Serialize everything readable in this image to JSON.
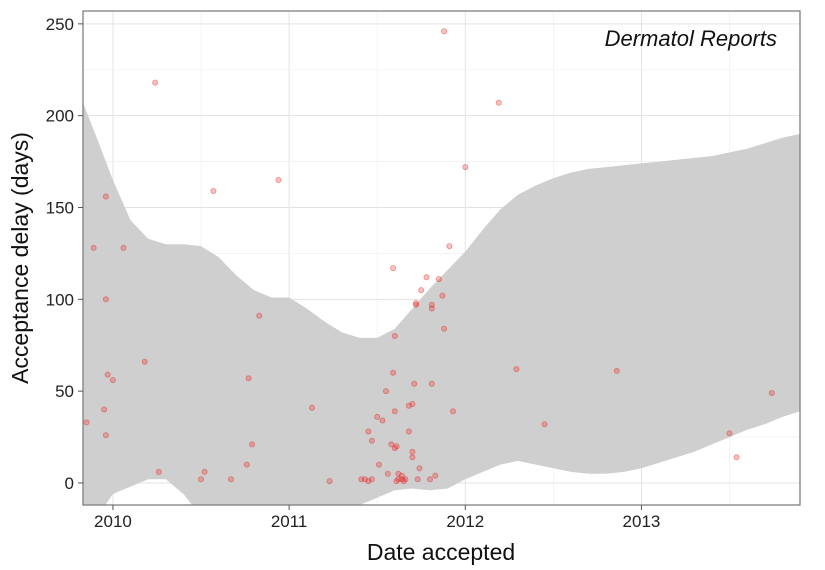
{
  "chart_data": {
    "type": "scatter",
    "title": "",
    "annotation": "Dermatol Reports",
    "xlabel": "Date accepted",
    "ylabel": "Acceptance delay (days)",
    "xlim": [
      2009.83,
      2013.9
    ],
    "ylim": [
      -12,
      257
    ],
    "x_ticks": [
      2010,
      2011,
      2012,
      2013
    ],
    "x_tick_labels": [
      "2010",
      "2011",
      "2012",
      "2013"
    ],
    "y_ticks": [
      0,
      50,
      100,
      150,
      200,
      250
    ],
    "y_tick_labels": [
      "0",
      "50",
      "100",
      "150",
      "200",
      "250"
    ],
    "grid": true,
    "point_color": "#e8221e",
    "band_color": "#cccccc",
    "points": [
      {
        "x": 2009.85,
        "y": 33
      },
      {
        "x": 2009.89,
        "y": 128
      },
      {
        "x": 2009.95,
        "y": 40
      },
      {
        "x": 2009.96,
        "y": 100
      },
      {
        "x": 2009.96,
        "y": 156
      },
      {
        "x": 2009.97,
        "y": 59
      },
      {
        "x": 2009.96,
        "y": 26
      },
      {
        "x": 2010.0,
        "y": 56
      },
      {
        "x": 2010.06,
        "y": 128
      },
      {
        "x": 2010.18,
        "y": 66
      },
      {
        "x": 2010.24,
        "y": 218
      },
      {
        "x": 2010.26,
        "y": 6
      },
      {
        "x": 2010.5,
        "y": 2
      },
      {
        "x": 2010.52,
        "y": 6
      },
      {
        "x": 2010.57,
        "y": 159
      },
      {
        "x": 2010.67,
        "y": 2
      },
      {
        "x": 2010.76,
        "y": 10
      },
      {
        "x": 2010.77,
        "y": 57
      },
      {
        "x": 2010.79,
        "y": 21
      },
      {
        "x": 2010.83,
        "y": 91
      },
      {
        "x": 2010.94,
        "y": 165
      },
      {
        "x": 2011.13,
        "y": 41
      },
      {
        "x": 2011.23,
        "y": 1
      },
      {
        "x": 2011.41,
        "y": 2
      },
      {
        "x": 2011.43,
        "y": 2
      },
      {
        "x": 2011.45,
        "y": 1
      },
      {
        "x": 2011.45,
        "y": 28
      },
      {
        "x": 2011.47,
        "y": 2
      },
      {
        "x": 2011.47,
        "y": 23
      },
      {
        "x": 2011.5,
        "y": 36
      },
      {
        "x": 2011.51,
        "y": 10
      },
      {
        "x": 2011.53,
        "y": 34
      },
      {
        "x": 2011.55,
        "y": 50
      },
      {
        "x": 2011.56,
        "y": 5
      },
      {
        "x": 2011.58,
        "y": 21
      },
      {
        "x": 2011.59,
        "y": 117
      },
      {
        "x": 2011.59,
        "y": 60
      },
      {
        "x": 2011.6,
        "y": 80
      },
      {
        "x": 2011.6,
        "y": 39
      },
      {
        "x": 2011.6,
        "y": 19
      },
      {
        "x": 2011.61,
        "y": 1
      },
      {
        "x": 2011.61,
        "y": 20
      },
      {
        "x": 2011.62,
        "y": 2
      },
      {
        "x": 2011.62,
        "y": 5
      },
      {
        "x": 2011.64,
        "y": 2
      },
      {
        "x": 2011.64,
        "y": 4
      },
      {
        "x": 2011.65,
        "y": 1
      },
      {
        "x": 2011.66,
        "y": 2
      },
      {
        "x": 2011.68,
        "y": 28
      },
      {
        "x": 2011.68,
        "y": 42
      },
      {
        "x": 2011.7,
        "y": 17
      },
      {
        "x": 2011.7,
        "y": 43
      },
      {
        "x": 2011.7,
        "y": 14
      },
      {
        "x": 2011.71,
        "y": 54
      },
      {
        "x": 2011.72,
        "y": 97
      },
      {
        "x": 2011.72,
        "y": 98
      },
      {
        "x": 2011.73,
        "y": 2
      },
      {
        "x": 2011.74,
        "y": 8
      },
      {
        "x": 2011.75,
        "y": 105
      },
      {
        "x": 2011.78,
        "y": 112
      },
      {
        "x": 2011.8,
        "y": 2
      },
      {
        "x": 2011.81,
        "y": 54
      },
      {
        "x": 2011.81,
        "y": 95
      },
      {
        "x": 2011.81,
        "y": 97
      },
      {
        "x": 2011.83,
        "y": 4
      },
      {
        "x": 2011.85,
        "y": 111
      },
      {
        "x": 2011.87,
        "y": 102
      },
      {
        "x": 2011.88,
        "y": 84
      },
      {
        "x": 2011.88,
        "y": 246
      },
      {
        "x": 2011.91,
        "y": 129
      },
      {
        "x": 2011.93,
        "y": 39
      },
      {
        "x": 2012.0,
        "y": 172
      },
      {
        "x": 2012.19,
        "y": 207
      },
      {
        "x": 2012.29,
        "y": 62
      },
      {
        "x": 2012.45,
        "y": 32
      },
      {
        "x": 2012.86,
        "y": 61
      },
      {
        "x": 2013.5,
        "y": 27
      },
      {
        "x": 2013.54,
        "y": 14
      },
      {
        "x": 2013.74,
        "y": 49
      }
    ],
    "band": {
      "x": [
        2009.83,
        2009.9,
        2010.0,
        2010.1,
        2010.2,
        2010.3,
        2010.4,
        2010.5,
        2010.6,
        2010.7,
        2010.8,
        2010.9,
        2011.0,
        2011.1,
        2011.2,
        2011.3,
        2011.4,
        2011.5,
        2011.6,
        2011.7,
        2011.8,
        2011.9,
        2012.0,
        2012.1,
        2012.2,
        2012.3,
        2012.4,
        2012.5,
        2012.6,
        2012.7,
        2012.8,
        2012.9,
        2013.0,
        2013.1,
        2013.2,
        2013.3,
        2013.4,
        2013.5,
        2013.6,
        2013.7,
        2013.8,
        2013.9
      ],
      "upper": [
        207,
        190,
        165,
        143,
        133,
        130,
        130,
        129,
        123,
        113,
        105,
        101,
        101,
        95,
        88,
        82,
        79,
        79,
        84,
        95,
        106,
        116,
        126,
        138,
        149,
        157,
        162,
        166,
        169,
        171,
        172,
        173,
        174,
        175,
        176,
        177,
        178,
        180,
        182,
        185,
        188,
        190
      ],
      "lower": [
        -45,
        -20,
        -6,
        -2,
        2,
        2,
        -6,
        -18,
        -40,
        -45,
        -40,
        -30,
        -22,
        -20,
        -18,
        -15,
        -12,
        -8,
        -4,
        -3,
        -4,
        -3,
        2,
        6,
        10,
        12,
        10,
        8,
        6,
        5,
        5,
        6,
        8,
        11,
        14,
        17,
        21,
        25,
        29,
        32,
        36,
        39
      ]
    }
  }
}
